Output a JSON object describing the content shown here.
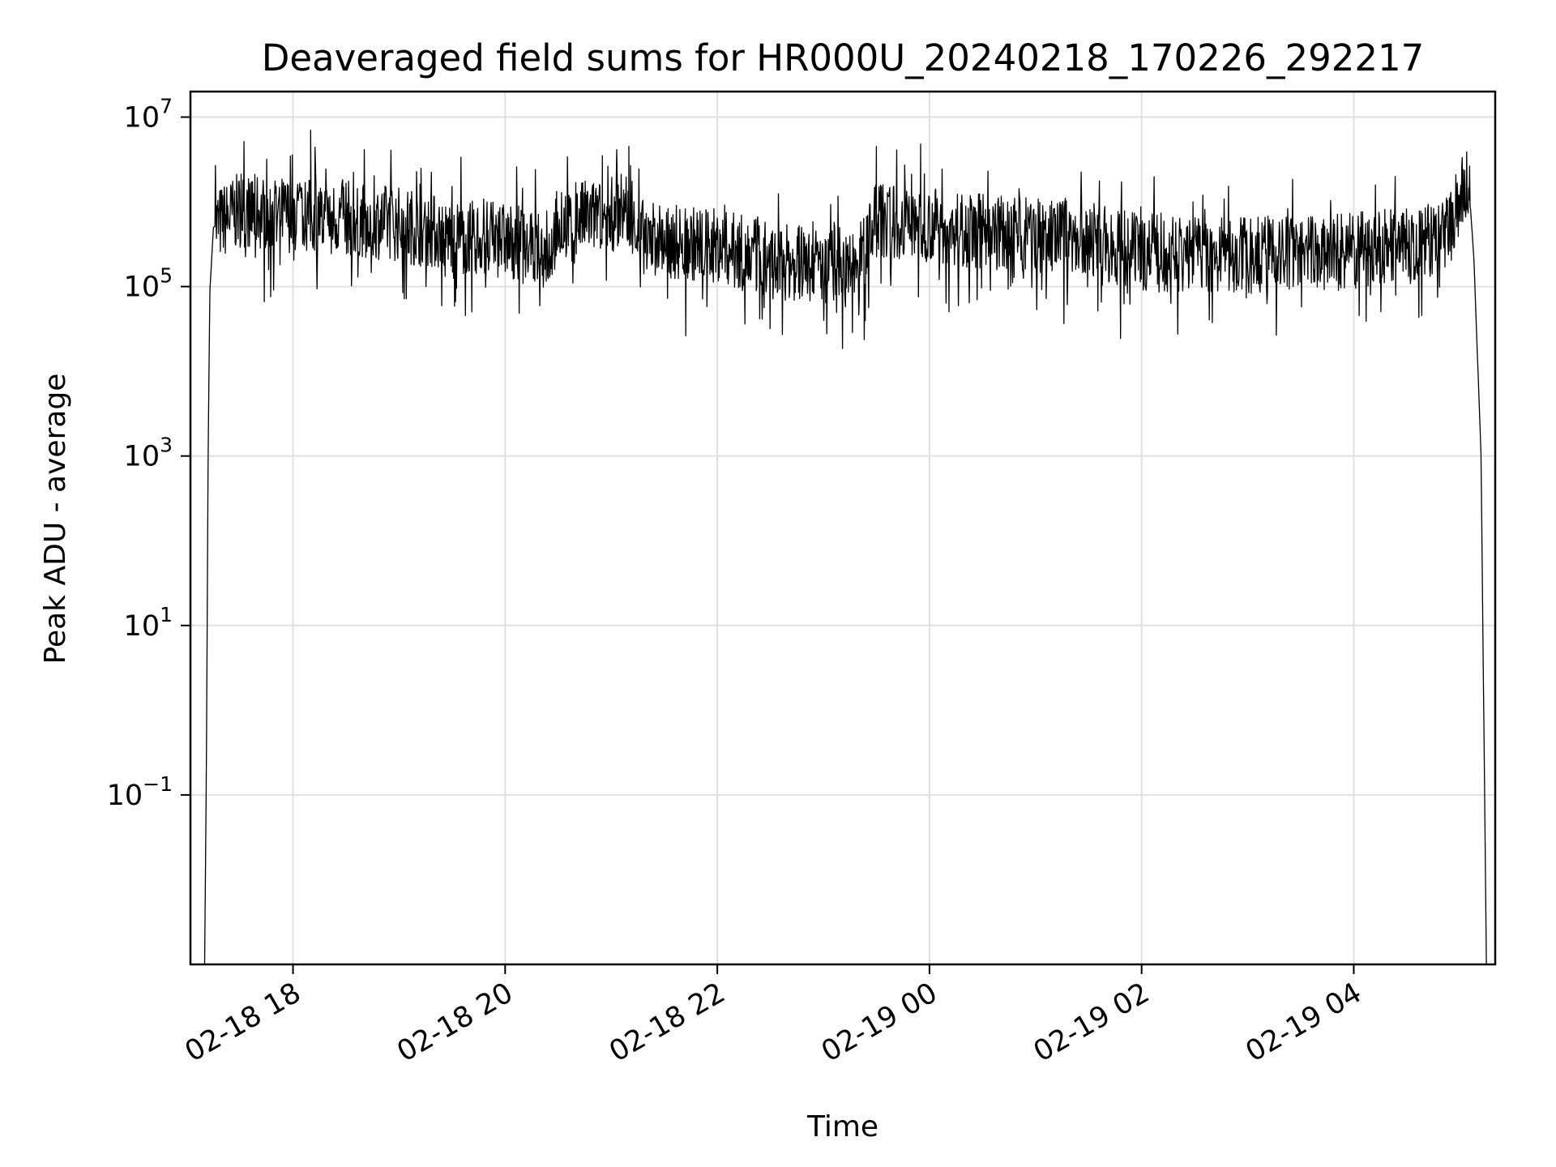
{
  "chart_data": {
    "type": "line",
    "title": "Deaveraged field sums for HR000U_20240218_170226_292217",
    "xlabel": "Time",
    "ylabel": "Peak ADU - average",
    "yscale": "log",
    "ylim": [
      0.001,
      20000000
    ],
    "xlim": [
      "2024-02-18 17:02",
      "2024-02-19 05:20"
    ],
    "grid": true,
    "x_ticks": [
      {
        "label": "02-18 18",
        "time": "2024-02-18 18:00"
      },
      {
        "label": "02-18 20",
        "time": "2024-02-18 20:00"
      },
      {
        "label": "02-18 22",
        "time": "2024-02-18 22:00"
      },
      {
        "label": "02-19 00",
        "time": "2024-02-19 00:00"
      },
      {
        "label": "02-19 02",
        "time": "2024-02-19 02:00"
      },
      {
        "label": "02-19 04",
        "time": "2024-02-19 04:00"
      }
    ],
    "y_ticks": [
      {
        "base": "10",
        "exp": "7",
        "value": 10000000
      },
      {
        "base": "10",
        "exp": "5",
        "value": 100000
      },
      {
        "base": "10",
        "exp": "3",
        "value": 1000
      },
      {
        "base": "10",
        "exp": "1",
        "value": 10
      },
      {
        "base": "10",
        "exp": "−1",
        "value": 0.1
      }
    ],
    "series": [
      {
        "color": "#000000",
        "trend": [
          {
            "time": "2024-02-18 17:10",
            "value": 0.001
          },
          {
            "time": "2024-02-18 17:11",
            "value": 0.2
          },
          {
            "time": "2024-02-18 17:12",
            "value": 1000
          },
          {
            "time": "2024-02-18 17:13",
            "value": 90000
          },
          {
            "time": "2024-02-18 17:15",
            "value": 500000
          },
          {
            "time": "2024-02-18 17:30",
            "value": 800000
          },
          {
            "time": "2024-02-18 18:00",
            "value": 700000
          },
          {
            "time": "2024-02-18 18:30",
            "value": 650000
          },
          {
            "time": "2024-02-18 19:00",
            "value": 550000
          },
          {
            "time": "2024-02-18 19:30",
            "value": 400000
          },
          {
            "time": "2024-02-18 20:00",
            "value": 350000
          },
          {
            "time": "2024-02-18 20:25",
            "value": 250000
          },
          {
            "time": "2024-02-18 20:30",
            "value": 600000
          },
          {
            "time": "2024-02-18 21:00",
            "value": 700000
          },
          {
            "time": "2024-02-18 21:10",
            "value": 900000
          },
          {
            "time": "2024-02-18 21:15",
            "value": 400000
          },
          {
            "time": "2024-02-18 21:30",
            "value": 350000
          },
          {
            "time": "2024-02-18 22:00",
            "value": 300000
          },
          {
            "time": "2024-02-18 22:30",
            "value": 200000
          },
          {
            "time": "2024-02-18 23:00",
            "value": 180000
          },
          {
            "time": "2024-02-18 23:20",
            "value": 200000
          },
          {
            "time": "2024-02-18 23:30",
            "value": 600000
          },
          {
            "time": "2024-02-19 00:00",
            "value": 550000
          },
          {
            "time": "2024-02-19 00:30",
            "value": 450000
          },
          {
            "time": "2024-02-19 01:00",
            "value": 400000
          },
          {
            "time": "2024-02-19 01:30",
            "value": 350000
          },
          {
            "time": "2024-02-19 02:00",
            "value": 250000
          },
          {
            "time": "2024-02-19 03:00",
            "value": 230000
          },
          {
            "time": "2024-02-19 04:00",
            "value": 270000
          },
          {
            "time": "2024-02-19 04:50",
            "value": 350000
          },
          {
            "time": "2024-02-19 05:05",
            "value": 1800000
          },
          {
            "time": "2024-02-19 05:08",
            "value": 200000
          },
          {
            "time": "2024-02-19 05:12",
            "value": 1000
          },
          {
            "time": "2024-02-19 05:15",
            "value": 0.001
          }
        ],
        "spikes": [
          {
            "time": "2024-02-18 18:10",
            "value": 7000000
          },
          {
            "time": "2024-02-18 20:55",
            "value": 3500000
          },
          {
            "time": "2024-02-18 21:10",
            "value": 4500000
          },
          {
            "time": "2024-02-18 23:30",
            "value": 4500000
          },
          {
            "time": "2024-02-18 23:55",
            "value": 4800000
          }
        ]
      }
    ]
  }
}
